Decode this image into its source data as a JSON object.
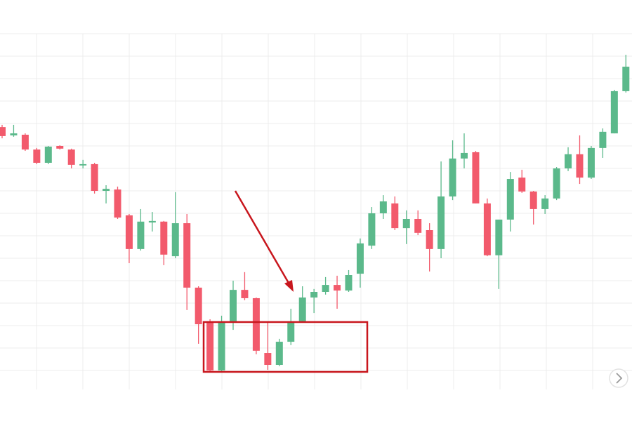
{
  "chart_data": {
    "type": "candlestick",
    "categories": [
      null,
      null,
      null,
      null,
      null,
      null,
      null,
      null,
      null,
      null,
      null,
      null,
      null,
      null,
      null,
      null,
      null,
      null,
      null,
      null,
      null,
      null,
      null,
      null,
      null,
      null,
      null,
      null,
      null,
      null,
      null,
      null,
      null,
      null,
      null,
      null,
      null,
      null,
      null,
      null,
      null,
      null,
      null,
      null,
      null,
      null,
      null,
      null,
      null,
      null,
      null,
      null,
      null,
      null,
      null
    ],
    "open": [
      118.4,
      114.7,
      115,
      108.4,
      102.5,
      110,
      108.4,
      101.3,
      101.9,
      90,
      90.6,
      79.1,
      64.1,
      75.9,
      76.3,
      60.9,
      75.6,
      46.9,
      31.9,
      10,
      31.9,
      45.9,
      42.2,
      17.8,
      12.5,
      22.8,
      31.9,
      42.5,
      45,
      48.1,
      45.6,
      53.1,
      65.6,
      80,
      84.4,
      73.4,
      77.5,
      72.5,
      64.1,
      87.5,
      104.4,
      107.2,
      84.4,
      61.3,
      77.2,
      95.9,
      89.7,
      81.9,
      86.6,
      100,
      106.3,
      95.9,
      109.1,
      115.6,
      134.4
    ],
    "high": [
      119.4,
      119.4,
      115.6,
      109.1,
      110,
      110.3,
      108.8,
      103.8,
      102.5,
      92.5,
      91.9,
      79.7,
      81.9,
      80.6,
      76.6,
      89.4,
      79.7,
      47.5,
      32.8,
      34.4,
      50,
      53.8,
      42.5,
      31.3,
      24.1,
      37.5,
      47.5,
      46.3,
      51.6,
      52.2,
      54.7,
      68.8,
      82.8,
      88.1,
      87.5,
      81.3,
      81.3,
      75.6,
      103.1,
      112.5,
      115.6,
      107.8,
      86.6,
      77.2,
      98.4,
      99.4,
      90,
      88.1,
      100.6,
      109.4,
      114.7,
      110,
      117.8,
      135,
      150.6
    ],
    "low": [
      113.4,
      114.1,
      107.8,
      101.9,
      101.9,
      108.4,
      100,
      100,
      88.8,
      84.4,
      77.5,
      57.8,
      63.4,
      71.9,
      56.9,
      60,
      36.9,
      21.9,
      9.4,
      9.4,
      28.1,
      41.3,
      17.2,
      10.3,
      11.9,
      21.3,
      31.3,
      35.6,
      43.8,
      37.5,
      45,
      46.9,
      64.1,
      77.5,
      72.5,
      66.3,
      70.3,
      54.1,
      60,
      85.9,
      100,
      84.4,
      60.9,
      46.3,
      71.9,
      89.1,
      75,
      79.7,
      85.9,
      98.8,
      93.1,
      95.3,
      104.7,
      115.6,
      133.8
    ],
    "close": [
      114.4,
      115.6,
      108.4,
      102.5,
      109.7,
      108.8,
      101.6,
      101.9,
      90,
      90.9,
      78.1,
      64.1,
      76.3,
      76.6,
      61.6,
      75.6,
      46.9,
      30.6,
      10,
      31.9,
      45.9,
      42.2,
      18.8,
      12.5,
      22.8,
      31.9,
      42.5,
      45,
      48.1,
      45.6,
      52.5,
      66.6,
      80,
      85.3,
      73.4,
      77.5,
      71.3,
      64.1,
      87.5,
      104.4,
      106.9,
      84.4,
      61.3,
      77.2,
      95.3,
      89.7,
      81.9,
      86.6,
      100,
      106.3,
      95.9,
      109.1,
      116.3,
      134.4,
      145.3
    ],
    "up_color": "#5bb98b",
    "down_color": "#f25a6c",
    "ylim": [
      0,
      160
    ],
    "yticks": [
      10,
      20,
      30,
      40,
      50,
      60,
      70,
      80,
      90,
      100,
      110,
      120,
      130,
      140,
      150,
      160
    ],
    "grid": true
  }
}
